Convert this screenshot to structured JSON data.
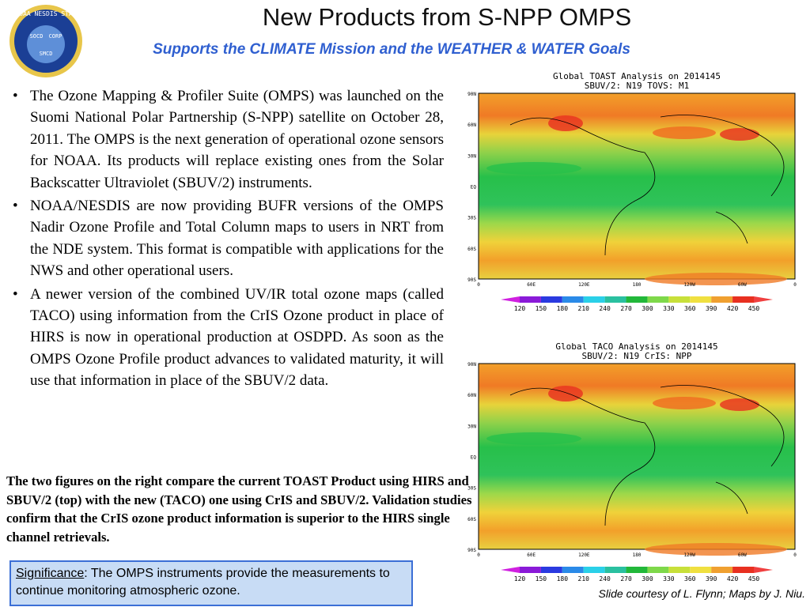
{
  "header": {
    "title": "New Products from S-NPP OMPS",
    "subtitle": "Supports the CLIMATE Mission and the WEATHER & WATER Goals"
  },
  "logo": {
    "ring": "NOAA NESDIS STAR",
    "left": "SOCD",
    "right": "CORP",
    "bottom": "SMCD"
  },
  "bullets": [
    "The Ozone Mapping & Profiler Suite (OMPS) was launched on the Suomi National Polar Partnership (S-NPP) satellite on October 28, 2011. The OMPS is the next generation of operational ozone sensors for NOAA. Its products will replace existing ones from the Solar Backscatter Ultraviolet (SBUV/2) instruments.",
    "NOAA/NESDIS are now providing BUFR versions of the OMPS Nadir Ozone Profile and Total Column maps to users in NRT from the NDE system. This format is compatible with applications for the NWS and other operational users.",
    "A newer version of the combined UV/IR total ozone maps (called TACO) using information from the CrIS Ozone product in place of HIRS is now in operational production at OSDPD. As soon as the OMPS Ozone Profile product advances to validated maturity, it will use that information in place of the SBUV/2 data."
  ],
  "summary": "The two figures on the right compare the current TOAST Product using HIRS and SBUV/2 (top) with the new (TACO) one using CrIS and SBUV/2. Validation studies confirm that the CrIS ozone product information is superior to the HIRS single channel retrievals.",
  "significance": {
    "label": "Significance",
    "text": ": The OMPS instruments provide the measurements to continue monitoring atmospheric ozone."
  },
  "credit": "Slide courtesy of L. Flynn;  Maps by J. Niu.",
  "maps": [
    {
      "title": [
        "Global TOAST Analysis on 2014145",
        "SBUV/2: N19  TOVS: M1"
      ],
      "lat_labels": [
        "90N",
        "60N",
        "30N",
        "EQ",
        "30S",
        "60S",
        "90S"
      ],
      "lon_labels": [
        "0",
        "60E",
        "120E",
        "180",
        "120W",
        "60W",
        "0"
      ],
      "colorbar": [
        "120",
        "150",
        "180",
        "210",
        "240",
        "270",
        "300",
        "330",
        "360",
        "390",
        "420",
        "450"
      ]
    },
    {
      "title": [
        "Global TACO Analysis on 2014145",
        "SBUV/2: N19  CrIS: NPP"
      ],
      "lat_labels": [
        "90N",
        "60N",
        "30N",
        "EQ",
        "30S",
        "60S",
        "90S"
      ],
      "lon_labels": [
        "0",
        "60E",
        "120E",
        "180",
        "120W",
        "60W",
        "0"
      ],
      "colorbar": [
        "120",
        "150",
        "180",
        "210",
        "240",
        "270",
        "300",
        "330",
        "360",
        "390",
        "420",
        "450"
      ]
    }
  ]
}
